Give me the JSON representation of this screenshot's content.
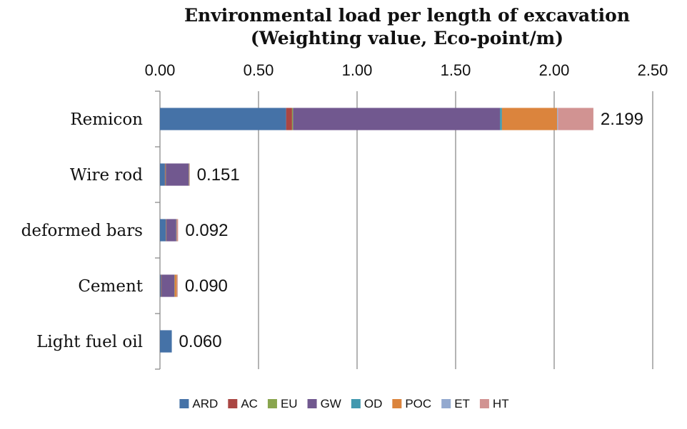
{
  "chart_data": {
    "type": "bar",
    "orientation": "horizontal",
    "stacked": true,
    "title": "Environmental load per length of excavation",
    "subtitle": "(Weighting value, Eco-point/m)",
    "xlabel": "",
    "ylabel": "",
    "xlim": [
      0,
      2.5
    ],
    "x_ticks": [
      "0.00",
      "0.50",
      "1.00",
      "1.50",
      "2.00",
      "2.50"
    ],
    "x_tick_values": [
      0,
      0.5,
      1.0,
      1.5,
      2.0,
      2.5
    ],
    "axis_position": "top",
    "grid": true,
    "legend_position": "bottom",
    "categories": [
      "Remicon",
      "Wire rod",
      "deformed bars",
      "Cement",
      "Light fuel oil"
    ],
    "totals": [
      "2.199",
      "0.151",
      "0.092",
      "0.090",
      "0.060"
    ],
    "series": [
      {
        "name": "ARD",
        "color": "#4572A7",
        "values": [
          0.64,
          0.025,
          0.03,
          0.005,
          0.06
        ]
      },
      {
        "name": "AC",
        "color": "#AA4643",
        "values": [
          0.03,
          0.003,
          0.002,
          0.002,
          0.0
        ]
      },
      {
        "name": "EU",
        "color": "#89A54E",
        "values": [
          0.005,
          0.002,
          0.001,
          0.001,
          0.0
        ]
      },
      {
        "name": "GW",
        "color": "#71588F",
        "values": [
          1.05,
          0.115,
          0.049,
          0.065,
          0.0
        ]
      },
      {
        "name": "OD",
        "color": "#4198AF",
        "values": [
          0.01,
          0.001,
          0.001,
          0.001,
          0.0
        ]
      },
      {
        "name": "POC",
        "color": "#DB843D",
        "values": [
          0.28,
          0.002,
          0.002,
          0.012,
          0.0
        ]
      },
      {
        "name": "ET",
        "color": "#93A9CF",
        "values": [
          0.004,
          0.001,
          0.001,
          0.001,
          0.0
        ]
      },
      {
        "name": "HT",
        "color": "#D19392",
        "values": [
          0.18,
          0.002,
          0.006,
          0.003,
          0.0
        ]
      }
    ]
  }
}
